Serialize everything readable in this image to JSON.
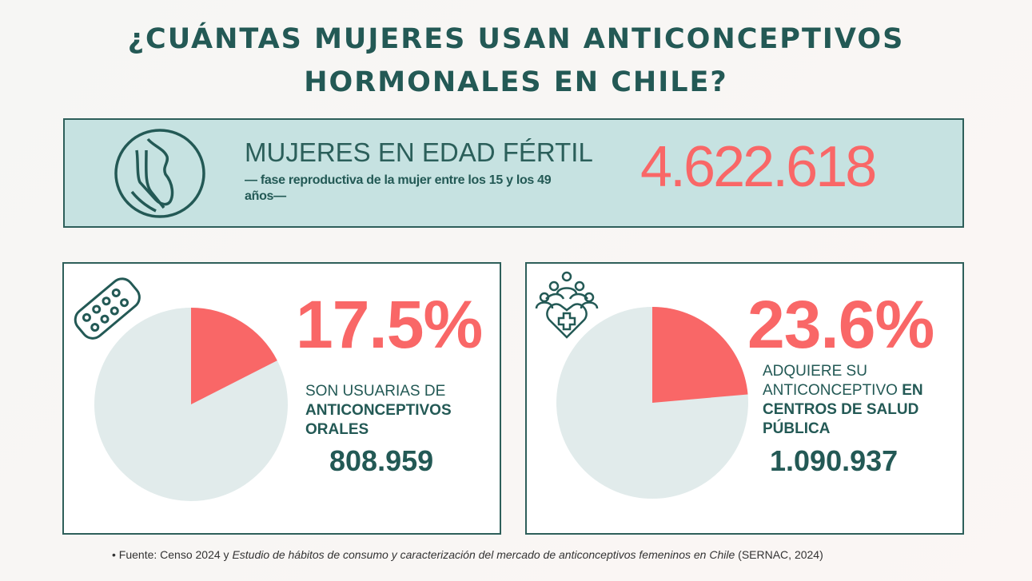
{
  "title": {
    "line1": "¿CUÁNTAS MUJERES USAN ANTICONCEPTIVOS",
    "line2": "HORMONALES EN CHILE?"
  },
  "banner": {
    "heading": "MUJERES EN EDAD FÉRTIL",
    "subtitle": "— fase reproductiva de la mujer entre los 15 y los 49 años—",
    "value": "4.622.618",
    "icon": "pregnant-woman-icon"
  },
  "colors": {
    "accent": "#f96767",
    "dark": "#235955",
    "banner_bg": "#c6e2e1",
    "pie_rest": "#e1ebeb"
  },
  "cards": [
    {
      "icon": "pill-pack-icon",
      "percent": "17.5%",
      "desc_normal": "SON USUARIAS DE",
      "desc_bold": "ANTICONCEPTIVOS ORALES",
      "count": "808.959"
    },
    {
      "icon": "community-health-heart-icon",
      "percent": "23.6%",
      "desc_normal": "ADQUIERE SU ANTICONCEPTIVO",
      "desc_bold": "EN CENTROS DE SALUD PÚBLICA",
      "count": "1.090.937"
    }
  ],
  "chart_data": [
    {
      "type": "pie",
      "values": [
        17.5,
        82.5
      ],
      "colors": [
        "#f96767",
        "#e1ebeb"
      ]
    },
    {
      "type": "pie",
      "values": [
        23.6,
        76.4
      ],
      "colors": [
        "#f96767",
        "#e1ebeb"
      ]
    }
  ],
  "footer": {
    "bullet": "•",
    "prefix": "Fuente: Censo 2024 y ",
    "italic": "Estudio de hábitos de consumo y caracterización del mercado de anticonceptivos femeninos en Chile",
    "suffix": " (SERNAC, 2024)"
  }
}
